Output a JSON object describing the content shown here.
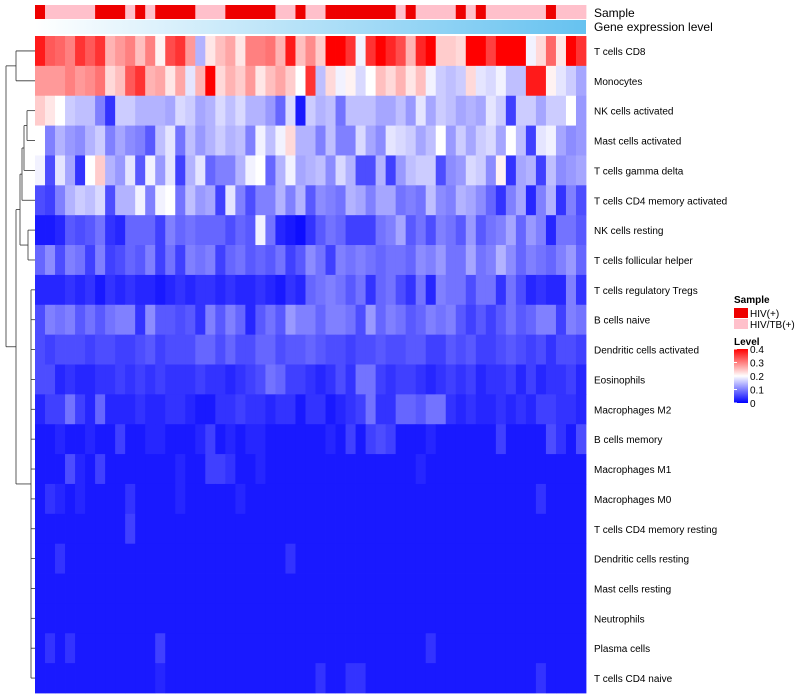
{
  "chart_data": {
    "type": "heatmap",
    "title": "",
    "annotation_labels": {
      "sample": "Sample",
      "expression": "Gene expression level"
    },
    "rows": [
      "T cells CD8",
      "Monocytes",
      "NK cells activated",
      "Mast cells activated",
      "T cells gamma delta",
      "T cells CD4 memory activated",
      "NK cells resting",
      "T cells follicular helper",
      "T cells regulatory  Tregs",
      "B cells naive",
      "Dendritic cells activated",
      "Eosinophils",
      "Macrophages M2",
      "B cells memory",
      "Macrophages M1",
      "Macrophages M0",
      "T cells CD4 memory resting",
      "Dendritic cells resting",
      "Mast cells resting",
      "Neutrophils",
      "Plasma cells",
      "T cells CD4 naive"
    ],
    "sample_groups": [
      "HIV(+)",
      "HIV/TB(+)",
      "HIV/TB(+)",
      "HIV/TB(+)",
      "HIV/TB(+)",
      "HIV/TB(+)",
      "HIV(+)",
      "HIV(+)",
      "HIV(+)",
      "HIV/TB(+)",
      "HIV(+)",
      "HIV/TB(+)",
      "HIV(+)",
      "HIV(+)",
      "HIV(+)",
      "HIV(+)",
      "HIV/TB(+)",
      "HIV/TB(+)",
      "HIV/TB(+)",
      "HIV(+)",
      "HIV(+)",
      "HIV(+)",
      "HIV(+)",
      "HIV(+)",
      "HIV/TB(+)",
      "HIV/TB(+)",
      "HIV(+)",
      "HIV/TB(+)",
      "HIV/TB(+)",
      "HIV(+)",
      "HIV(+)",
      "HIV(+)",
      "HIV(+)",
      "HIV(+)",
      "HIV(+)",
      "HIV(+)",
      "HIV/TB(+)",
      "HIV(+)",
      "HIV/TB(+)",
      "HIV/TB(+)",
      "HIV/TB(+)",
      "HIV/TB(+)",
      "HIV(+)",
      "HIV/TB(+)",
      "HIV(+)",
      "HIV/TB(+)",
      "HIV/TB(+)",
      "HIV/TB(+)",
      "HIV/TB(+)",
      "HIV/TB(+)",
      "HIV/TB(+)",
      "HIV(+)",
      "HIV/TB(+)",
      "HIV/TB(+)",
      "HIV/TB(+)"
    ],
    "expression_gradient": [
      "#ffffff",
      "#66c2f0"
    ],
    "values": [
      [
        0.38,
        0.33,
        0.32,
        0.3,
        0.36,
        0.33,
        0.36,
        0.26,
        0.28,
        0.3,
        0.25,
        0.3,
        0.21,
        0.34,
        0.36,
        0.28,
        0.14,
        0.22,
        0.25,
        0.27,
        0.22,
        0.3,
        0.3,
        0.31,
        0.26,
        0.38,
        0.25,
        0.29,
        0.24,
        0.4,
        0.4,
        0.36,
        0.19,
        0.36,
        0.4,
        0.37,
        0.34,
        0.26,
        0.37,
        0.4,
        0.24,
        0.24,
        0.23,
        0.4,
        0.4,
        0.35,
        0.4,
        0.4,
        0.4,
        0.19,
        0.23,
        0.32,
        0.22,
        0.4,
        0.36
      ],
      [
        0.28,
        0.28,
        0.28,
        0.3,
        0.28,
        0.29,
        0.31,
        0.23,
        0.25,
        0.33,
        0.36,
        0.26,
        0.27,
        0.22,
        0.27,
        0.18,
        0.26,
        0.4,
        0.23,
        0.26,
        0.24,
        0.28,
        0.22,
        0.25,
        0.27,
        0.24,
        0.2,
        0.36,
        0.15,
        0.23,
        0.19,
        0.21,
        0.17,
        0.2,
        0.25,
        0.23,
        0.26,
        0.22,
        0.25,
        0.19,
        0.16,
        0.15,
        0.16,
        0.23,
        0.18,
        0.17,
        0.19,
        0.15,
        0.15,
        0.38,
        0.38,
        0.21,
        0.18,
        0.16,
        0.13
      ],
      [
        0.24,
        0.22,
        0.2,
        0.16,
        0.15,
        0.15,
        0.1,
        0.04,
        0.16,
        0.16,
        0.14,
        0.14,
        0.14,
        0.13,
        0.17,
        0.16,
        0.13,
        0.14,
        0.17,
        0.15,
        0.17,
        0.14,
        0.14,
        0.12,
        0.08,
        0.17,
        0.02,
        0.16,
        0.14,
        0.15,
        0.09,
        0.15,
        0.15,
        0.15,
        0.13,
        0.13,
        0.15,
        0.12,
        0.18,
        0.13,
        0.16,
        0.15,
        0.13,
        0.14,
        0.13,
        0.18,
        0.16,
        0.05,
        0.16,
        0.16,
        0.13,
        0.16,
        0.16,
        0.2,
        0.12
      ],
      [
        0.2,
        0.1,
        0.14,
        0.12,
        0.11,
        0.14,
        0.16,
        0.1,
        0.13,
        0.11,
        0.1,
        0.07,
        0.15,
        0.18,
        0.09,
        0.15,
        0.12,
        0.14,
        0.16,
        0.14,
        0.15,
        0.1,
        0.19,
        0.15,
        0.19,
        0.23,
        0.14,
        0.14,
        0.1,
        0.15,
        0.1,
        0.1,
        0.17,
        0.13,
        0.11,
        0.18,
        0.17,
        0.16,
        0.13,
        0.15,
        0.2,
        0.12,
        0.16,
        0.13,
        0.16,
        0.17,
        0.13,
        0.2,
        0.15,
        0.05,
        0.18,
        0.19,
        0.13,
        0.11,
        0.12
      ],
      [
        0.19,
        0.06,
        0.18,
        0.13,
        0.04,
        0.2,
        0.24,
        0.14,
        0.12,
        0.18,
        0.07,
        0.19,
        0.12,
        0.18,
        0.05,
        0.14,
        0.18,
        0.08,
        0.1,
        0.1,
        0.14,
        0.19,
        0.2,
        0.08,
        0.14,
        0.19,
        0.13,
        0.14,
        0.15,
        0.11,
        0.17,
        0.14,
        0.06,
        0.06,
        0.14,
        0.05,
        0.12,
        0.15,
        0.16,
        0.16,
        0.06,
        0.11,
        0.12,
        0.17,
        0.16,
        0.11,
        0.21,
        0.04,
        0.13,
        0.14,
        0.05,
        0.15,
        0.11,
        0.12,
        0.13
      ],
      [
        0.06,
        0.05,
        0.1,
        0.14,
        0.16,
        0.15,
        0.17,
        0.06,
        0.14,
        0.14,
        0.19,
        0.1,
        0.19,
        0.2,
        0.09,
        0.15,
        0.12,
        0.13,
        0.05,
        0.18,
        0.1,
        0.06,
        0.1,
        0.1,
        0.14,
        0.1,
        0.14,
        0.07,
        0.11,
        0.1,
        0.09,
        0.14,
        0.13,
        0.1,
        0.13,
        0.13,
        0.09,
        0.1,
        0.09,
        0.15,
        0.11,
        0.1,
        0.14,
        0.13,
        0.11,
        0.08,
        0.04,
        0.1,
        0.13,
        0.03,
        0.1,
        0.14,
        0.04,
        0.1,
        0.06
      ],
      [
        0.02,
        0.02,
        0.03,
        0.07,
        0.06,
        0.07,
        0.09,
        0.04,
        0.03,
        0.08,
        0.08,
        0.08,
        0.05,
        0.1,
        0.08,
        0.09,
        0.08,
        0.08,
        0.08,
        0.06,
        0.08,
        0.07,
        0.19,
        0.09,
        0.03,
        0.02,
        0.01,
        0.04,
        0.07,
        0.09,
        0.08,
        0.05,
        0.05,
        0.05,
        0.09,
        0.1,
        0.13,
        0.07,
        0.09,
        0.06,
        0.1,
        0.09,
        0.07,
        0.12,
        0.07,
        0.09,
        0.1,
        0.13,
        0.08,
        0.12,
        0.1,
        0.03,
        0.09,
        0.09,
        0.07
      ],
      [
        0.08,
        0.11,
        0.06,
        0.1,
        0.09,
        0.05,
        0.1,
        0.05,
        0.06,
        0.08,
        0.07,
        0.1,
        0.05,
        0.09,
        0.05,
        0.1,
        0.09,
        0.1,
        0.05,
        0.08,
        0.09,
        0.07,
        0.08,
        0.07,
        0.09,
        0.05,
        0.07,
        0.11,
        0.09,
        0.05,
        0.1,
        0.09,
        0.1,
        0.09,
        0.08,
        0.09,
        0.09,
        0.08,
        0.11,
        0.1,
        0.12,
        0.09,
        0.09,
        0.13,
        0.09,
        0.1,
        0.14,
        0.11,
        0.08,
        0.1,
        0.09,
        0.08,
        0.1,
        0.12,
        0.08
      ],
      [
        0.03,
        0.03,
        0.03,
        0.04,
        0.03,
        0.04,
        0.02,
        0.04,
        0.03,
        0.04,
        0.03,
        0.03,
        0.02,
        0.03,
        0.04,
        0.03,
        0.04,
        0.04,
        0.03,
        0.04,
        0.03,
        0.03,
        0.04,
        0.03,
        0.02,
        0.04,
        0.03,
        0.08,
        0.09,
        0.1,
        0.09,
        0.07,
        0.09,
        0.04,
        0.08,
        0.09,
        0.06,
        0.04,
        0.09,
        0.03,
        0.1,
        0.09,
        0.09,
        0.06,
        0.09,
        0.09,
        0.04,
        0.09,
        0.06,
        0.03,
        0.04,
        0.03,
        0.03,
        0.1,
        0.04
      ],
      [
        0.06,
        0.1,
        0.09,
        0.1,
        0.07,
        0.09,
        0.07,
        0.09,
        0.1,
        0.1,
        0.04,
        0.11,
        0.07,
        0.07,
        0.06,
        0.07,
        0.04,
        0.1,
        0.07,
        0.1,
        0.08,
        0.03,
        0.07,
        0.09,
        0.07,
        0.12,
        0.1,
        0.1,
        0.08,
        0.1,
        0.1,
        0.09,
        0.06,
        0.12,
        0.08,
        0.1,
        0.09,
        0.07,
        0.08,
        0.1,
        0.09,
        0.1,
        0.07,
        0.05,
        0.07,
        0.05,
        0.07,
        0.09,
        0.07,
        0.08,
        0.1,
        0.1,
        0.05,
        0.1,
        0.09
      ],
      [
        0.06,
        0.05,
        0.06,
        0.06,
        0.06,
        0.05,
        0.06,
        0.06,
        0.05,
        0.05,
        0.06,
        0.07,
        0.05,
        0.06,
        0.06,
        0.06,
        0.08,
        0.08,
        0.06,
        0.08,
        0.06,
        0.06,
        0.08,
        0.08,
        0.06,
        0.07,
        0.07,
        0.08,
        0.07,
        0.06,
        0.06,
        0.05,
        0.06,
        0.06,
        0.07,
        0.06,
        0.06,
        0.07,
        0.07,
        0.05,
        0.05,
        0.07,
        0.06,
        0.07,
        0.05,
        0.05,
        0.06,
        0.07,
        0.06,
        0.05,
        0.06,
        0.04,
        0.06,
        0.06,
        0.05
      ],
      [
        0.06,
        0.06,
        0.03,
        0.04,
        0.03,
        0.03,
        0.04,
        0.04,
        0.05,
        0.04,
        0.05,
        0.04,
        0.05,
        0.04,
        0.04,
        0.04,
        0.05,
        0.04,
        0.04,
        0.03,
        0.04,
        0.05,
        0.06,
        0.09,
        0.08,
        0.05,
        0.05,
        0.04,
        0.03,
        0.04,
        0.06,
        0.04,
        0.09,
        0.09,
        0.05,
        0.04,
        0.05,
        0.05,
        0.04,
        0.03,
        0.04,
        0.05,
        0.04,
        0.05,
        0.03,
        0.04,
        0.04,
        0.05,
        0.03,
        0.05,
        0.03,
        0.04,
        0.04,
        0.05,
        0.03
      ],
      [
        0.03,
        0.05,
        0.05,
        0.09,
        0.05,
        0.03,
        0.08,
        0.03,
        0.03,
        0.03,
        0.04,
        0.03,
        0.03,
        0.04,
        0.04,
        0.03,
        0.02,
        0.02,
        0.04,
        0.04,
        0.05,
        0.04,
        0.04,
        0.03,
        0.04,
        0.04,
        0.02,
        0.04,
        0.04,
        0.02,
        0.03,
        0.04,
        0.05,
        0.09,
        0.04,
        0.04,
        0.08,
        0.08,
        0.07,
        0.09,
        0.09,
        0.04,
        0.03,
        0.04,
        0.03,
        0.03,
        0.04,
        0.03,
        0.04,
        0.03,
        0.05,
        0.05,
        0.04,
        0.04,
        0.03
      ],
      [
        0.02,
        0.02,
        0.03,
        0.02,
        0.02,
        0.03,
        0.02,
        0.02,
        0.05,
        0.02,
        0.02,
        0.03,
        0.03,
        0.02,
        0.02,
        0.02,
        0.03,
        0.05,
        0.02,
        0.03,
        0.02,
        0.03,
        0.03,
        0.02,
        0.02,
        0.02,
        0.02,
        0.02,
        0.02,
        0.03,
        0.02,
        0.05,
        0.02,
        0.05,
        0.06,
        0.05,
        0.02,
        0.02,
        0.02,
        0.03,
        0.02,
        0.02,
        0.02,
        0.02,
        0.02,
        0.02,
        0.05,
        0.02,
        0.02,
        0.02,
        0.02,
        0.06,
        0.04,
        0.02,
        0.06
      ],
      [
        0.02,
        0.02,
        0.02,
        0.06,
        0.03,
        0.02,
        0.05,
        0.02,
        0.02,
        0.02,
        0.02,
        0.02,
        0.02,
        0.02,
        0.03,
        0.02,
        0.02,
        0.05,
        0.05,
        0.04,
        0.02,
        0.02,
        0.03,
        0.02,
        0.02,
        0.02,
        0.02,
        0.02,
        0.02,
        0.02,
        0.02,
        0.02,
        0.02,
        0.02,
        0.02,
        0.02,
        0.02,
        0.02,
        0.03,
        0.02,
        0.02,
        0.02,
        0.02,
        0.02,
        0.02,
        0.02,
        0.02,
        0.02,
        0.02,
        0.02,
        0.02,
        0.02,
        0.02,
        0.02,
        0.02
      ],
      [
        0.02,
        0.04,
        0.03,
        0.02,
        0.03,
        0.02,
        0.02,
        0.02,
        0.02,
        0.04,
        0.02,
        0.02,
        0.02,
        0.02,
        0.03,
        0.02,
        0.02,
        0.02,
        0.02,
        0.02,
        0.03,
        0.02,
        0.02,
        0.02,
        0.02,
        0.02,
        0.02,
        0.02,
        0.02,
        0.02,
        0.02,
        0.02,
        0.02,
        0.02,
        0.02,
        0.02,
        0.02,
        0.02,
        0.02,
        0.02,
        0.02,
        0.02,
        0.02,
        0.02,
        0.02,
        0.02,
        0.02,
        0.02,
        0.02,
        0.02,
        0.04,
        0.02,
        0.02,
        0.02,
        0.02
      ],
      [
        0.02,
        0.02,
        0.02,
        0.02,
        0.02,
        0.02,
        0.02,
        0.02,
        0.02,
        0.05,
        0.02,
        0.02,
        0.02,
        0.02,
        0.02,
        0.02,
        0.02,
        0.02,
        0.02,
        0.02,
        0.02,
        0.02,
        0.02,
        0.02,
        0.02,
        0.02,
        0.02,
        0.02,
        0.02,
        0.02,
        0.02,
        0.02,
        0.02,
        0.02,
        0.02,
        0.02,
        0.02,
        0.02,
        0.02,
        0.02,
        0.02,
        0.02,
        0.02,
        0.02,
        0.02,
        0.02,
        0.02,
        0.02,
        0.02,
        0.02,
        0.02,
        0.02,
        0.02,
        0.02,
        0.02
      ],
      [
        0.02,
        0.02,
        0.04,
        0.02,
        0.02,
        0.02,
        0.02,
        0.02,
        0.02,
        0.02,
        0.02,
        0.02,
        0.02,
        0.02,
        0.02,
        0.02,
        0.02,
        0.02,
        0.02,
        0.02,
        0.02,
        0.02,
        0.02,
        0.02,
        0.02,
        0.04,
        0.02,
        0.02,
        0.02,
        0.02,
        0.02,
        0.02,
        0.02,
        0.02,
        0.02,
        0.02,
        0.02,
        0.02,
        0.02,
        0.02,
        0.02,
        0.02,
        0.02,
        0.02,
        0.02,
        0.02,
        0.02,
        0.02,
        0.02,
        0.02,
        0.02,
        0.02,
        0.02,
        0.02,
        0.02
      ],
      [
        0.02,
        0.02,
        0.02,
        0.02,
        0.02,
        0.02,
        0.02,
        0.02,
        0.02,
        0.02,
        0.02,
        0.02,
        0.02,
        0.02,
        0.02,
        0.02,
        0.02,
        0.02,
        0.02,
        0.02,
        0.02,
        0.02,
        0.02,
        0.02,
        0.02,
        0.02,
        0.02,
        0.02,
        0.02,
        0.02,
        0.02,
        0.02,
        0.02,
        0.02,
        0.02,
        0.02,
        0.02,
        0.02,
        0.02,
        0.02,
        0.02,
        0.02,
        0.02,
        0.02,
        0.02,
        0.02,
        0.02,
        0.02,
        0.02,
        0.02,
        0.02,
        0.02,
        0.02,
        0.02,
        0.02
      ],
      [
        0.02,
        0.02,
        0.02,
        0.02,
        0.02,
        0.02,
        0.02,
        0.02,
        0.02,
        0.02,
        0.02,
        0.02,
        0.02,
        0.02,
        0.02,
        0.02,
        0.02,
        0.02,
        0.02,
        0.02,
        0.02,
        0.02,
        0.02,
        0.02,
        0.02,
        0.02,
        0.02,
        0.02,
        0.02,
        0.02,
        0.02,
        0.02,
        0.02,
        0.02,
        0.02,
        0.02,
        0.02,
        0.02,
        0.02,
        0.02,
        0.02,
        0.02,
        0.02,
        0.02,
        0.02,
        0.02,
        0.02,
        0.02,
        0.02,
        0.02,
        0.02,
        0.02,
        0.02,
        0.02,
        0.02
      ],
      [
        0.02,
        0.04,
        0.02,
        0.04,
        0.02,
        0.02,
        0.02,
        0.02,
        0.02,
        0.02,
        0.02,
        0.02,
        0.05,
        0.02,
        0.02,
        0.02,
        0.02,
        0.02,
        0.02,
        0.02,
        0.02,
        0.02,
        0.02,
        0.02,
        0.02,
        0.02,
        0.02,
        0.02,
        0.02,
        0.02,
        0.02,
        0.02,
        0.02,
        0.02,
        0.02,
        0.02,
        0.02,
        0.02,
        0.02,
        0.04,
        0.02,
        0.02,
        0.02,
        0.02,
        0.02,
        0.02,
        0.02,
        0.02,
        0.02,
        0.02,
        0.02,
        0.02,
        0.02,
        0.02,
        0.02
      ],
      [
        0.02,
        0.02,
        0.02,
        0.02,
        0.02,
        0.02,
        0.02,
        0.02,
        0.02,
        0.02,
        0.02,
        0.02,
        0.03,
        0.02,
        0.02,
        0.02,
        0.02,
        0.02,
        0.02,
        0.02,
        0.02,
        0.02,
        0.02,
        0.02,
        0.02,
        0.02,
        0.02,
        0.02,
        0.04,
        0.02,
        0.02,
        0.04,
        0.04,
        0.02,
        0.02,
        0.02,
        0.02,
        0.02,
        0.02,
        0.02,
        0.02,
        0.02,
        0.02,
        0.02,
        0.02,
        0.02,
        0.02,
        0.02,
        0.02,
        0.02,
        0.04,
        0.02,
        0.02,
        0.02,
        0.02
      ]
    ],
    "color_scale": {
      "min": 0,
      "max": 0.4,
      "stops": [
        {
          "value": 0,
          "color": "#0000ff"
        },
        {
          "value": 0.2,
          "color": "#ffffff"
        },
        {
          "value": 0.4,
          "color": "#ff0000"
        }
      ]
    },
    "legend": {
      "placement": "right",
      "sample_title": "Sample",
      "sample_entries": [
        {
          "label": "HIV(+)",
          "color": "#ee0000"
        },
        {
          "label": "HIV/TB(+)",
          "color": "#ffc0cb"
        }
      ],
      "level_title": "Level",
      "level_ticks": [
        "0.4",
        "0.3",
        "0.2",
        "0.1",
        "0"
      ],
      "level_tick_values": [
        0.4,
        0.3,
        0.2,
        0.1,
        0
      ]
    },
    "dendrogram": "left"
  }
}
